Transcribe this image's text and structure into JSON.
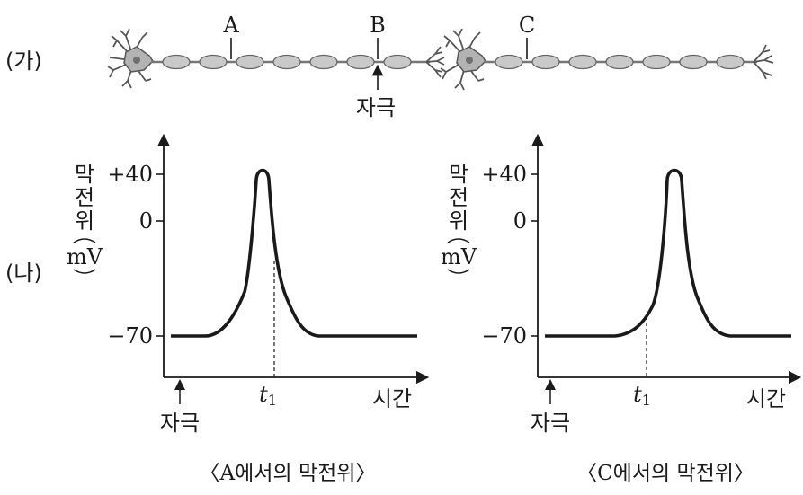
{
  "part_ga": {
    "label": "(가)",
    "point_a": "A",
    "point_b": "B",
    "point_c": "C",
    "stimulus": "자극"
  },
  "part_na": {
    "label": "(나)"
  },
  "graph_a": {
    "ylabel_chars": [
      "막",
      "전",
      "위"
    ],
    "yunit": "mV",
    "yticks": [
      "+40",
      "0",
      "−70"
    ],
    "xlabel": "시간",
    "t_main": "t",
    "t_sub": "1",
    "stimulus": "자극",
    "caption": "〈A에서의 막전위〉"
  },
  "graph_c": {
    "ylabel_chars": [
      "막",
      "전",
      "위"
    ],
    "yunit": "mV",
    "yticks": [
      "+40",
      "0",
      "−70"
    ],
    "xlabel": "시간",
    "t_main": "t",
    "t_sub": "1",
    "stimulus": "자극",
    "caption": "〈C에서의 막전위〉"
  },
  "colors": {
    "ink": "#1a1a1a",
    "myelin": "#c9c9c9",
    "soma": "#b3b3b3",
    "nucleus": "#707070"
  }
}
